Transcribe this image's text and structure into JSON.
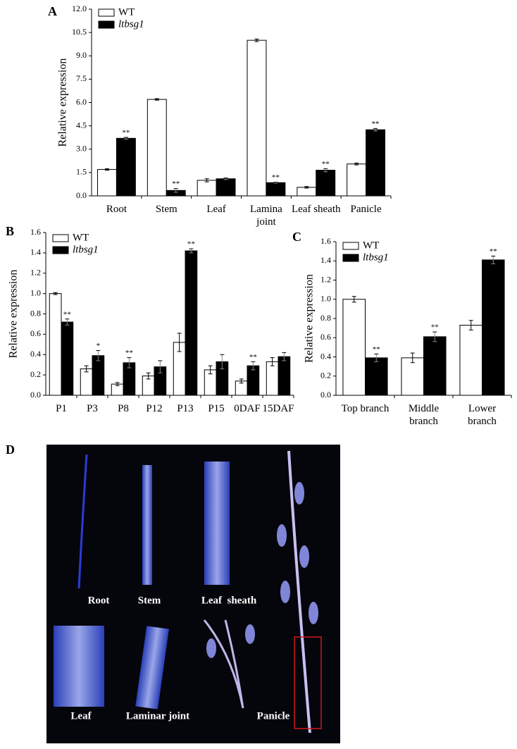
{
  "chart_data": [
    {
      "type": "bar",
      "panel_label": "A",
      "y_label": "Relative expression",
      "categories": [
        "Root",
        "Stem",
        "Leaf",
        "Lamina joint",
        "Leaf sheath",
        "Panicle"
      ],
      "series": [
        {
          "name": "WT",
          "color": "#ffffff",
          "values": [
            1.7,
            6.2,
            1.0,
            10.0,
            0.55,
            2.05
          ],
          "errors": [
            0.05,
            0.05,
            0.1,
            0.08,
            0.05,
            0.06
          ],
          "significance": [
            null,
            null,
            null,
            null,
            null,
            null
          ]
        },
        {
          "name": "ltbsg1",
          "color": "#000000",
          "values": [
            3.7,
            0.35,
            1.1,
            0.85,
            1.65,
            4.25
          ],
          "errors": [
            0.06,
            0.12,
            0.05,
            0.03,
            0.1,
            0.08
          ],
          "significance": [
            "**",
            "**",
            null,
            "**",
            "**",
            "**"
          ]
        }
      ],
      "ylim": [
        0,
        12
      ],
      "yticks": [
        {
          "value": 0,
          "label": "0.0"
        },
        {
          "value": 1.5,
          "label": "1.5"
        },
        {
          "value": 3,
          "label": "3.0"
        },
        {
          "value": 4.5,
          "label": "4.5"
        },
        {
          "value": 6,
          "label": "6.0"
        },
        {
          "value": 7.5,
          "label": "7.5"
        },
        {
          "value": 9,
          "label": "9.0"
        },
        {
          "value": 10.5,
          "label": "10.5"
        },
        {
          "value": 12,
          "label": "12.0"
        }
      ]
    },
    {
      "type": "bar",
      "panel_label": "B",
      "y_label": "Relative expression",
      "categories": [
        "P1",
        "P3",
        "P8",
        "P12",
        "P13",
        "P15",
        "0DAF",
        "15DAF"
      ],
      "series": [
        {
          "name": "WT",
          "color": "#ffffff",
          "values": [
            1.0,
            0.26,
            0.11,
            0.19,
            0.52,
            0.25,
            0.14,
            0.33
          ],
          "errors": [
            0.01,
            0.03,
            0.015,
            0.03,
            0.09,
            0.04,
            0.02,
            0.04
          ],
          "significance": [
            null,
            null,
            null,
            null,
            null,
            null,
            null,
            null
          ]
        },
        {
          "name": "ltbsg1",
          "color": "#000000",
          "values": [
            0.72,
            0.39,
            0.32,
            0.28,
            1.42,
            0.33,
            0.29,
            0.38
          ],
          "errors": [
            0.03,
            0.05,
            0.05,
            0.06,
            0.02,
            0.07,
            0.04,
            0.04
          ],
          "significance": [
            "**",
            "*",
            "**",
            null,
            "**",
            null,
            "**",
            null
          ]
        }
      ],
      "ylim": [
        0,
        1.6
      ],
      "yticks": [
        {
          "value": 0,
          "label": "0.0"
        },
        0.2,
        0.4,
        0.6,
        0.8,
        {
          "value": 1,
          "label": "1.0"
        },
        1.2,
        1.4,
        1.6
      ]
    },
    {
      "type": "bar",
      "panel_label": "C",
      "y_label": "Relative expression",
      "categories": [
        "Top branch",
        "Middle branch",
        "Lower branch"
      ],
      "series": [
        {
          "name": "WT",
          "color": "#ffffff",
          "values": [
            1.0,
            0.39,
            0.73
          ],
          "errors": [
            0.03,
            0.05,
            0.05
          ],
          "significance": [
            null,
            null,
            null
          ]
        },
        {
          "name": "ltbsg1",
          "color": "#000000",
          "values": [
            0.39,
            0.61,
            1.41
          ],
          "errors": [
            0.04,
            0.05,
            0.04
          ],
          "significance": [
            "**",
            "**",
            "**"
          ]
        }
      ],
      "ylim": [
        0,
        1.6
      ],
      "yticks": [
        {
          "value": 0,
          "label": "0.0"
        },
        0.2,
        0.4,
        0.6,
        0.8,
        {
          "value": 1,
          "label": "1.0"
        },
        1.2,
        1.4,
        1.6
      ]
    }
  ],
  "photo_panel": {
    "panel_label": "D",
    "captions": [
      "Root",
      "Stem",
      "Leaf  sheath",
      "Leaf",
      "Laminar joint",
      "Panicle"
    ]
  }
}
